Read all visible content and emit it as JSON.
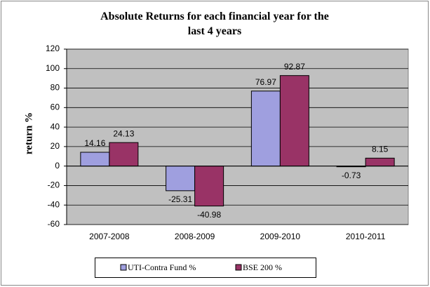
{
  "chart_data": {
    "type": "bar",
    "title": "Absolute Returns for each financial year for the last 4 years",
    "y_label": "return %",
    "categories": [
      "2007-2008",
      "2008-2009",
      "2009-2010",
      "2010-2011"
    ],
    "series": [
      {
        "name": "UTI-Contra Fund %",
        "color": "#9f9fdf",
        "values": [
          14.16,
          -25.31,
          76.97,
          -0.73
        ]
      },
      {
        "name": "BSE 200 %",
        "color": "#993366",
        "values": [
          24.13,
          -40.98,
          92.87,
          8.15
        ]
      }
    ],
    "ylim": [
      -60,
      120
    ],
    "yticks": [
      -60,
      -40,
      -20,
      0,
      20,
      40,
      60,
      80,
      100,
      120
    ],
    "grid": true,
    "legend": "bottom"
  }
}
